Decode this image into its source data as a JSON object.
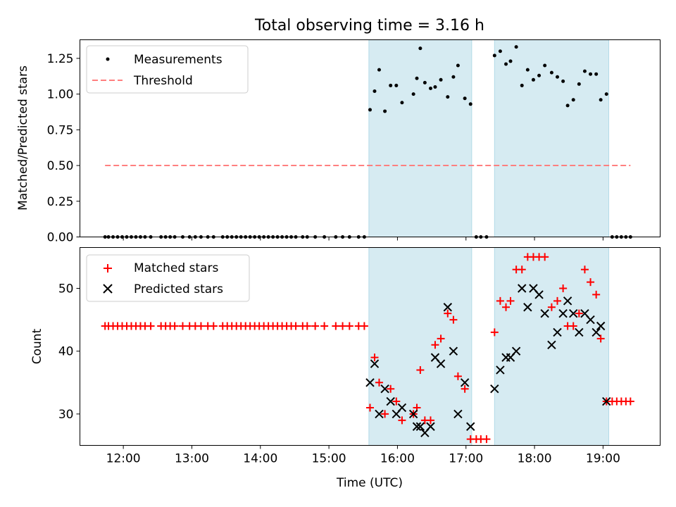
{
  "figure": {
    "title": "Total observing time = 3.16 h",
    "xlabel": "Time (UTC)"
  },
  "colors": {
    "measurement": "#000000",
    "threshold": "#ff7f7f",
    "matched": "#ff0000",
    "predicted": "#000000",
    "shade": "#add8e6"
  },
  "chart_data": [
    {
      "type": "scatter",
      "panel": "top",
      "ylabel": "Matched/Predicted stars",
      "ylim": [
        0,
        1.38
      ],
      "yticks": [
        "0.00",
        "0.25",
        "0.50",
        "0.75",
        "1.00",
        "1.25"
      ],
      "ytick_values": [
        0,
        0.25,
        0.5,
        0.75,
        1.0,
        1.25
      ],
      "legend": [
        "Measurements",
        "Threshold"
      ],
      "legend_loc": "upper left",
      "threshold": {
        "name": "Threshold",
        "value": 0.5,
        "x_start": "11:44",
        "x_end": "19:24"
      },
      "measurements": {
        "name": "Measurements",
        "points": [
          [
            "11:44",
            0
          ],
          [
            "11:47",
            0
          ],
          [
            "11:51",
            0
          ],
          [
            "11:55",
            0
          ],
          [
            "11:59",
            0
          ],
          [
            "12:03",
            0
          ],
          [
            "12:07",
            0
          ],
          [
            "12:11",
            0
          ],
          [
            "12:15",
            0
          ],
          [
            "12:19",
            0
          ],
          [
            "12:24",
            0
          ],
          [
            "12:33",
            0
          ],
          [
            "12:37",
            0
          ],
          [
            "12:41",
            0
          ],
          [
            "12:45",
            0
          ],
          [
            "12:52",
            0
          ],
          [
            "12:58",
            0
          ],
          [
            "13:03",
            0
          ],
          [
            "13:08",
            0
          ],
          [
            "13:14",
            0
          ],
          [
            "13:19",
            0
          ],
          [
            "13:27",
            0
          ],
          [
            "13:31",
            0
          ],
          [
            "13:35",
            0
          ],
          [
            "13:39",
            0
          ],
          [
            "13:43",
            0
          ],
          [
            "13:47",
            0
          ],
          [
            "13:51",
            0
          ],
          [
            "13:55",
            0
          ],
          [
            "13:59",
            0
          ],
          [
            "14:03",
            0
          ],
          [
            "14:07",
            0
          ],
          [
            "14:11",
            0
          ],
          [
            "14:15",
            0
          ],
          [
            "14:19",
            0
          ],
          [
            "14:23",
            0
          ],
          [
            "14:27",
            0
          ],
          [
            "14:31",
            0
          ],
          [
            "14:37",
            0
          ],
          [
            "14:41",
            0
          ],
          [
            "14:48",
            0
          ],
          [
            "14:56",
            0
          ],
          [
            "15:06",
            0
          ],
          [
            "15:12",
            0
          ],
          [
            "15:18",
            0
          ],
          [
            "15:26",
            0
          ],
          [
            "15:31",
            0
          ],
          [
            "15:36",
            0.89
          ],
          [
            "15:40",
            1.02
          ],
          [
            "15:44",
            1.17
          ],
          [
            "15:49",
            0.88
          ],
          [
            "15:54",
            1.06
          ],
          [
            "15:59",
            1.06
          ],
          [
            "16:04",
            0.94
          ],
          [
            "16:14",
            1.0
          ],
          [
            "16:17",
            1.11
          ],
          [
            "16:20",
            1.32
          ],
          [
            "16:24",
            1.08
          ],
          [
            "16:29",
            1.04
          ],
          [
            "16:33",
            1.05
          ],
          [
            "16:38",
            1.1
          ],
          [
            "16:44",
            0.98
          ],
          [
            "16:49",
            1.12
          ],
          [
            "16:53",
            1.2
          ],
          [
            "16:59",
            0.97
          ],
          [
            "17:04",
            0.93
          ],
          [
            "17:09",
            0
          ],
          [
            "17:13",
            0
          ],
          [
            "17:18",
            0
          ],
          [
            "17:25",
            1.27
          ],
          [
            "17:30",
            1.3
          ],
          [
            "17:35",
            1.21
          ],
          [
            "17:39",
            1.23
          ],
          [
            "17:44",
            1.33
          ],
          [
            "17:49",
            1.06
          ],
          [
            "17:54",
            1.17
          ],
          [
            "17:59",
            1.1
          ],
          [
            "18:04",
            1.13
          ],
          [
            "18:09",
            1.2
          ],
          [
            "18:15",
            1.15
          ],
          [
            "18:20",
            1.12
          ],
          [
            "18:25",
            1.09
          ],
          [
            "18:29",
            0.92
          ],
          [
            "18:34",
            0.96
          ],
          [
            "18:39",
            1.07
          ],
          [
            "18:44",
            1.16
          ],
          [
            "18:49",
            1.14
          ],
          [
            "18:54",
            1.14
          ],
          [
            "18:58",
            0.96
          ],
          [
            "19:03",
            1.0
          ],
          [
            "19:08",
            0
          ],
          [
            "19:12",
            0
          ],
          [
            "19:16",
            0
          ],
          [
            "19:20",
            0
          ],
          [
            "19:24",
            0
          ]
        ]
      }
    },
    {
      "type": "scatter",
      "panel": "bottom",
      "ylabel": "Count",
      "ylim": [
        25,
        56.5
      ],
      "yticks": [
        "30",
        "40",
        "50"
      ],
      "ytick_values": [
        30,
        40,
        50
      ],
      "legend": [
        "Matched stars",
        "Predicted stars"
      ],
      "legend_loc": "upper left",
      "series": [
        {
          "name": "Matched stars",
          "marker": "+",
          "points": [
            [
              "11:44",
              44
            ],
            [
              "11:47",
              44
            ],
            [
              "11:51",
              44
            ],
            [
              "11:55",
              44
            ],
            [
              "11:59",
              44
            ],
            [
              "12:03",
              44
            ],
            [
              "12:07",
              44
            ],
            [
              "12:11",
              44
            ],
            [
              "12:15",
              44
            ],
            [
              "12:19",
              44
            ],
            [
              "12:24",
              44
            ],
            [
              "12:33",
              44
            ],
            [
              "12:37",
              44
            ],
            [
              "12:41",
              44
            ],
            [
              "12:45",
              44
            ],
            [
              "12:52",
              44
            ],
            [
              "12:58",
              44
            ],
            [
              "13:03",
              44
            ],
            [
              "13:08",
              44
            ],
            [
              "13:14",
              44
            ],
            [
              "13:19",
              44
            ],
            [
              "13:27",
              44
            ],
            [
              "13:31",
              44
            ],
            [
              "13:35",
              44
            ],
            [
              "13:39",
              44
            ],
            [
              "13:43",
              44
            ],
            [
              "13:47",
              44
            ],
            [
              "13:51",
              44
            ],
            [
              "13:55",
              44
            ],
            [
              "13:59",
              44
            ],
            [
              "14:03",
              44
            ],
            [
              "14:07",
              44
            ],
            [
              "14:11",
              44
            ],
            [
              "14:15",
              44
            ],
            [
              "14:19",
              44
            ],
            [
              "14:23",
              44
            ],
            [
              "14:27",
              44
            ],
            [
              "14:31",
              44
            ],
            [
              "14:37",
              44
            ],
            [
              "14:41",
              44
            ],
            [
              "14:48",
              44
            ],
            [
              "14:56",
              44
            ],
            [
              "15:06",
              44
            ],
            [
              "15:12",
              44
            ],
            [
              "15:18",
              44
            ],
            [
              "15:26",
              44
            ],
            [
              "15:31",
              44
            ],
            [
              "15:36",
              31
            ],
            [
              "15:40",
              39
            ],
            [
              "15:44",
              35
            ],
            [
              "15:49",
              30
            ],
            [
              "15:54",
              34
            ],
            [
              "15:59",
              32
            ],
            [
              "16:04",
              29
            ],
            [
              "16:14",
              30
            ],
            [
              "16:17",
              31
            ],
            [
              "16:20",
              37
            ],
            [
              "16:24",
              29
            ],
            [
              "16:29",
              29
            ],
            [
              "16:33",
              41
            ],
            [
              "16:38",
              42
            ],
            [
              "16:44",
              46
            ],
            [
              "16:49",
              45
            ],
            [
              "16:53",
              36
            ],
            [
              "16:59",
              34
            ],
            [
              "17:04",
              26
            ],
            [
              "17:09",
              26
            ],
            [
              "17:13",
              26
            ],
            [
              "17:18",
              26
            ],
            [
              "17:25",
              43
            ],
            [
              "17:30",
              48
            ],
            [
              "17:35",
              47
            ],
            [
              "17:39",
              48
            ],
            [
              "17:44",
              53
            ],
            [
              "17:49",
              53
            ],
            [
              "17:54",
              55
            ],
            [
              "17:59",
              55
            ],
            [
              "18:04",
              55
            ],
            [
              "18:09",
              55
            ],
            [
              "18:15",
              47
            ],
            [
              "18:20",
              48
            ],
            [
              "18:25",
              50
            ],
            [
              "18:29",
              44
            ],
            [
              "18:34",
              44
            ],
            [
              "18:39",
              46
            ],
            [
              "18:44",
              53
            ],
            [
              "18:49",
              51
            ],
            [
              "18:54",
              49
            ],
            [
              "18:58",
              42
            ],
            [
              "19:03",
              32
            ],
            [
              "19:08",
              32
            ],
            [
              "19:12",
              32
            ],
            [
              "19:16",
              32
            ],
            [
              "19:20",
              32
            ],
            [
              "19:24",
              32
            ]
          ]
        },
        {
          "name": "Predicted stars",
          "marker": "x",
          "points": [
            [
              "15:36",
              35
            ],
            [
              "15:40",
              38
            ],
            [
              "15:44",
              30
            ],
            [
              "15:49",
              34
            ],
            [
              "15:54",
              32
            ],
            [
              "15:59",
              30
            ],
            [
              "16:04",
              31
            ],
            [
              "16:14",
              30
            ],
            [
              "16:17",
              28
            ],
            [
              "16:20",
              28
            ],
            [
              "16:24",
              27
            ],
            [
              "16:29",
              28
            ],
            [
              "16:33",
              39
            ],
            [
              "16:38",
              38
            ],
            [
              "16:44",
              47
            ],
            [
              "16:49",
              40
            ],
            [
              "16:53",
              30
            ],
            [
              "16:59",
              35
            ],
            [
              "17:04",
              28
            ],
            [
              "17:25",
              34
            ],
            [
              "17:30",
              37
            ],
            [
              "17:35",
              39
            ],
            [
              "17:39",
              39
            ],
            [
              "17:44",
              40
            ],
            [
              "17:49",
              50
            ],
            [
              "17:54",
              47
            ],
            [
              "17:59",
              50
            ],
            [
              "18:04",
              49
            ],
            [
              "18:09",
              46
            ],
            [
              "18:15",
              41
            ],
            [
              "18:20",
              43
            ],
            [
              "18:25",
              46
            ],
            [
              "18:29",
              48
            ],
            [
              "18:34",
              46
            ],
            [
              "18:39",
              43
            ],
            [
              "18:44",
              46
            ],
            [
              "18:49",
              45
            ],
            [
              "18:54",
              43
            ],
            [
              "18:58",
              44
            ],
            [
              "19:03",
              32
            ]
          ]
        }
      ]
    }
  ],
  "x_axis": {
    "xlim": [
      "11:22",
      "19:50"
    ],
    "ticks": [
      "12:00",
      "13:00",
      "14:00",
      "15:00",
      "16:00",
      "17:00",
      "18:00",
      "19:00"
    ]
  },
  "observing_windows": [
    {
      "start": "15:35",
      "end": "17:05"
    },
    {
      "start": "17:25",
      "end": "19:05"
    }
  ]
}
